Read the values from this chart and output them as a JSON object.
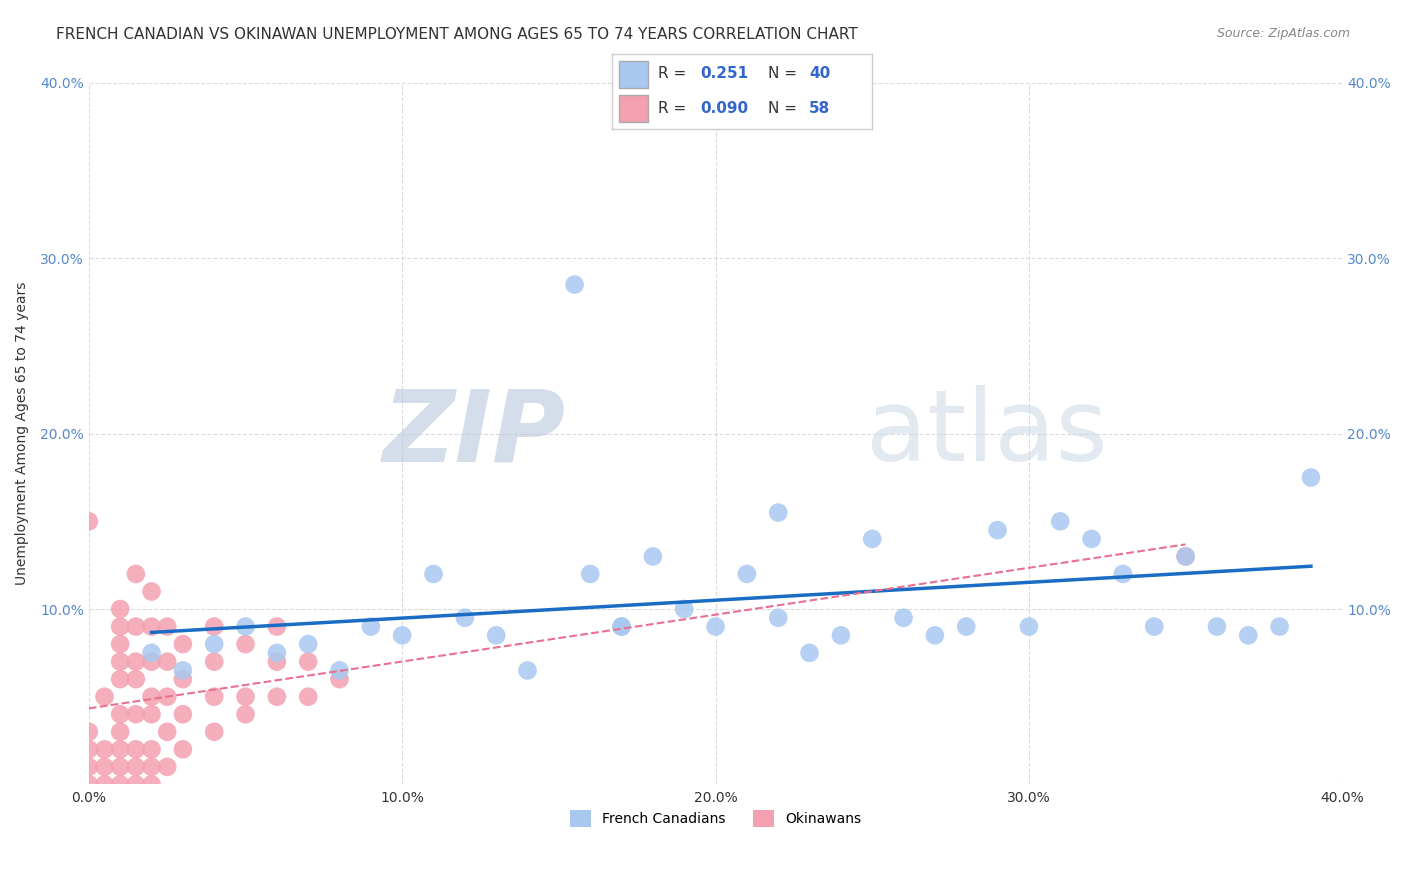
{
  "title": "FRENCH CANADIAN VS OKINAWAN UNEMPLOYMENT AMONG AGES 65 TO 74 YEARS CORRELATION CHART",
  "source": "Source: ZipAtlas.com",
  "ylabel": "Unemployment Among Ages 65 to 74 years",
  "watermark_zip": "ZIP",
  "watermark_atlas": "atlas",
  "xlim": [
    0.0,
    0.4
  ],
  "ylim": [
    0.0,
    0.4
  ],
  "xticks": [
    0.0,
    0.1,
    0.2,
    0.3,
    0.4
  ],
  "yticks": [
    0.0,
    0.1,
    0.2,
    0.3,
    0.4
  ],
  "french_canadians": {
    "R": 0.251,
    "N": 40,
    "color": "#a8c8f0",
    "line_color": "#1a6cc4",
    "x": [
      0.02,
      0.03,
      0.04,
      0.05,
      0.06,
      0.07,
      0.08,
      0.09,
      0.1,
      0.11,
      0.12,
      0.13,
      0.14,
      0.155,
      0.16,
      0.17,
      0.18,
      0.19,
      0.2,
      0.21,
      0.22,
      0.23,
      0.24,
      0.25,
      0.26,
      0.27,
      0.28,
      0.29,
      0.3,
      0.31,
      0.32,
      0.33,
      0.34,
      0.35,
      0.36,
      0.37,
      0.38,
      0.39,
      0.17,
      0.22
    ],
    "y": [
      0.075,
      0.065,
      0.08,
      0.09,
      0.075,
      0.08,
      0.065,
      0.09,
      0.085,
      0.12,
      0.095,
      0.085,
      0.065,
      0.285,
      0.12,
      0.09,
      0.13,
      0.1,
      0.09,
      0.12,
      0.095,
      0.075,
      0.085,
      0.14,
      0.095,
      0.085,
      0.09,
      0.145,
      0.09,
      0.15,
      0.14,
      0.12,
      0.09,
      0.13,
      0.09,
      0.085,
      0.09,
      0.175,
      0.09,
      0.155
    ]
  },
  "okinawans": {
    "R": 0.09,
    "N": 58,
    "color": "#f4a0b0",
    "line_color": "#e87090",
    "x": [
      0.0,
      0.0,
      0.0,
      0.0,
      0.0,
      0.005,
      0.005,
      0.005,
      0.005,
      0.01,
      0.01,
      0.01,
      0.01,
      0.01,
      0.01,
      0.01,
      0.01,
      0.01,
      0.01,
      0.015,
      0.015,
      0.015,
      0.015,
      0.015,
      0.015,
      0.015,
      0.015,
      0.02,
      0.02,
      0.02,
      0.02,
      0.02,
      0.02,
      0.02,
      0.02,
      0.025,
      0.025,
      0.025,
      0.025,
      0.025,
      0.03,
      0.03,
      0.03,
      0.03,
      0.04,
      0.04,
      0.04,
      0.04,
      0.05,
      0.05,
      0.05,
      0.06,
      0.06,
      0.06,
      0.07,
      0.07,
      0.08,
      0.35
    ],
    "y": [
      0.0,
      0.01,
      0.02,
      0.03,
      0.15,
      0.0,
      0.01,
      0.02,
      0.05,
      0.0,
      0.01,
      0.02,
      0.03,
      0.04,
      0.06,
      0.07,
      0.08,
      0.09,
      0.1,
      0.0,
      0.01,
      0.02,
      0.04,
      0.06,
      0.07,
      0.09,
      0.12,
      0.0,
      0.01,
      0.02,
      0.04,
      0.05,
      0.07,
      0.09,
      0.11,
      0.01,
      0.03,
      0.05,
      0.07,
      0.09,
      0.02,
      0.04,
      0.06,
      0.08,
      0.03,
      0.05,
      0.07,
      0.09,
      0.04,
      0.05,
      0.08,
      0.05,
      0.07,
      0.09,
      0.05,
      0.07,
      0.06,
      0.13
    ]
  },
  "title_fontsize": 11,
  "label_fontsize": 10,
  "tick_fontsize": 10,
  "watermark_color": "#cdd9ea",
  "background_color": "#ffffff",
  "grid_color": "#cccccc"
}
